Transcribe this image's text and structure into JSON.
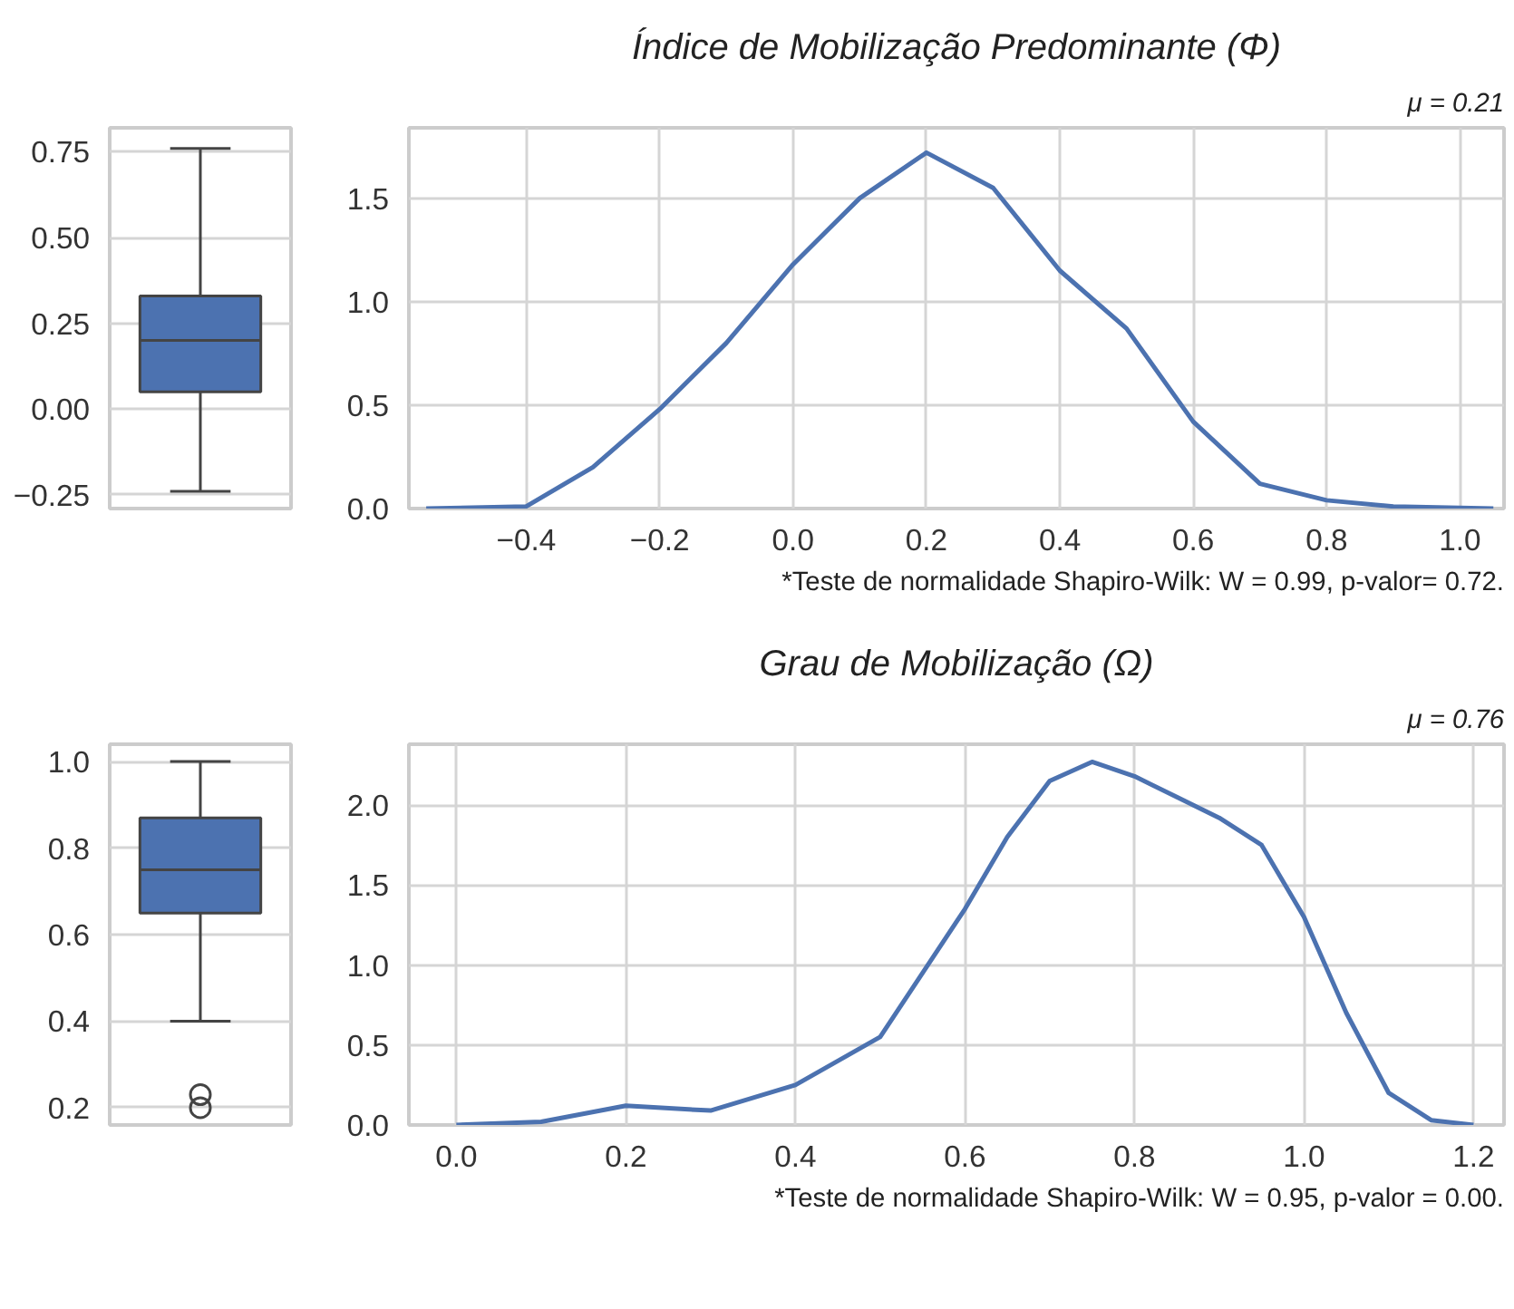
{
  "chart_data": [
    {
      "type": "box",
      "categories": [
        null
      ],
      "color": "#4c72b0",
      "boxes": [
        {
          "low": -0.24,
          "q1": 0.05,
          "median": 0.2,
          "q3": 0.33,
          "high": 0.76
        }
      ],
      "ylim": [
        -0.29,
        0.82
      ],
      "yticks": [
        {
          "value": -0.25,
          "label": "−0.25"
        },
        {
          "value": 0.0,
          "label": "0.00"
        },
        {
          "value": 0.25,
          "label": "0.25"
        },
        {
          "value": 0.5,
          "label": "0.50"
        },
        {
          "value": 0.75,
          "label": "0.75"
        }
      ],
      "grid": "y",
      "tick_labels": "y"
    },
    {
      "type": "line",
      "title": "Índice de Mobilização Predominante (Φ)",
      "annotations": [
        "μ = 0.21",
        "*Teste de normalidade Shapiro-Wilk: W = 0.99, p-valor= 0.72."
      ],
      "x": [
        -0.55,
        -0.4,
        -0.3,
        -0.2,
        -0.1,
        0.0,
        0.1,
        0.2,
        0.3,
        0.4,
        0.5,
        0.6,
        0.7,
        0.8,
        0.9,
        1.05
      ],
      "series": [
        {
          "color": "#4c72b0",
          "values": [
            0,
            0.01,
            0.2,
            0.48,
            0.8,
            1.18,
            1.5,
            1.72,
            1.55,
            1.15,
            0.87,
            0.42,
            0.12,
            0.04,
            0.01,
            0
          ]
        }
      ],
      "xlim": [
        -0.576,
        1.066
      ],
      "xticks": [
        {
          "value": -0.4,
          "label": "−0.4"
        },
        {
          "value": -0.2,
          "label": "−0.2"
        },
        {
          "value": 0.0,
          "label": "0.0"
        },
        {
          "value": 0.2,
          "label": "0.2"
        },
        {
          "value": 0.4,
          "label": "0.4"
        },
        {
          "value": 0.6,
          "label": "0.6"
        },
        {
          "value": 0.8,
          "label": "0.8"
        },
        {
          "value": 1.0,
          "label": "1.0"
        }
      ],
      "ylim": [
        0,
        1.84
      ],
      "yticks": [
        {
          "value": 0,
          "label": "0.0"
        },
        {
          "value": 0.5,
          "label": "0.5"
        },
        {
          "value": 1.0,
          "label": "1.0"
        },
        {
          "value": 1.5,
          "label": "1.5"
        }
      ],
      "grid": true,
      "line_style": "solid",
      "marker": "none"
    },
    {
      "type": "box",
      "categories": [
        null
      ],
      "color": "#4c72b0",
      "boxes": [
        {
          "low": 0.4,
          "q1": 0.65,
          "median": 0.75,
          "q3": 0.87,
          "high": 1.0,
          "outliers": [
            0.23,
            0.2
          ]
        }
      ],
      "ylim": [
        0.16,
        1.04
      ],
      "yticks": [
        {
          "value": 0.2,
          "label": "0.2"
        },
        {
          "value": 0.4,
          "label": "0.4"
        },
        {
          "value": 0.6,
          "label": "0.6"
        },
        {
          "value": 0.8,
          "label": "0.8"
        },
        {
          "value": 1.0,
          "label": "1.0"
        }
      ],
      "grid": "y",
      "tick_labels": "y"
    },
    {
      "type": "line",
      "title": "Grau de Mobilização (Ω)",
      "annotations": [
        "μ = 0.76",
        "*Teste de normalidade Shapiro-Wilk: W = 0.95, p-valor = 0.00."
      ],
      "x": [
        0.0,
        0.1,
        0.2,
        0.3,
        0.4,
        0.5,
        0.6,
        0.65,
        0.7,
        0.75,
        0.8,
        0.85,
        0.9,
        0.95,
        1.0,
        1.05,
        1.1,
        1.15,
        1.2
      ],
      "series": [
        {
          "color": "#4c72b0",
          "values": [
            0,
            0.02,
            0.12,
            0.09,
            0.25,
            0.55,
            1.35,
            1.8,
            2.15,
            2.27,
            2.18,
            2.05,
            1.92,
            1.75,
            1.3,
            0.7,
            0.2,
            0.03,
            0
          ]
        }
      ],
      "xlim": [
        -0.056,
        1.236
      ],
      "xticks": [
        {
          "value": 0.0,
          "label": "0.0"
        },
        {
          "value": 0.2,
          "label": "0.2"
        },
        {
          "value": 0.4,
          "label": "0.4"
        },
        {
          "value": 0.6,
          "label": "0.6"
        },
        {
          "value": 0.8,
          "label": "0.8"
        },
        {
          "value": 1.0,
          "label": "1.0"
        },
        {
          "value": 1.2,
          "label": "1.2"
        }
      ],
      "ylim": [
        0,
        2.38
      ],
      "yticks": [
        {
          "value": 0,
          "label": "0.0"
        },
        {
          "value": 0.5,
          "label": "0.5"
        },
        {
          "value": 1.0,
          "label": "1.0"
        },
        {
          "value": 1.5,
          "label": "1.5"
        },
        {
          "value": 2.0,
          "label": "2.0"
        }
      ],
      "grid": true,
      "line_style": "solid",
      "marker": "none"
    }
  ]
}
